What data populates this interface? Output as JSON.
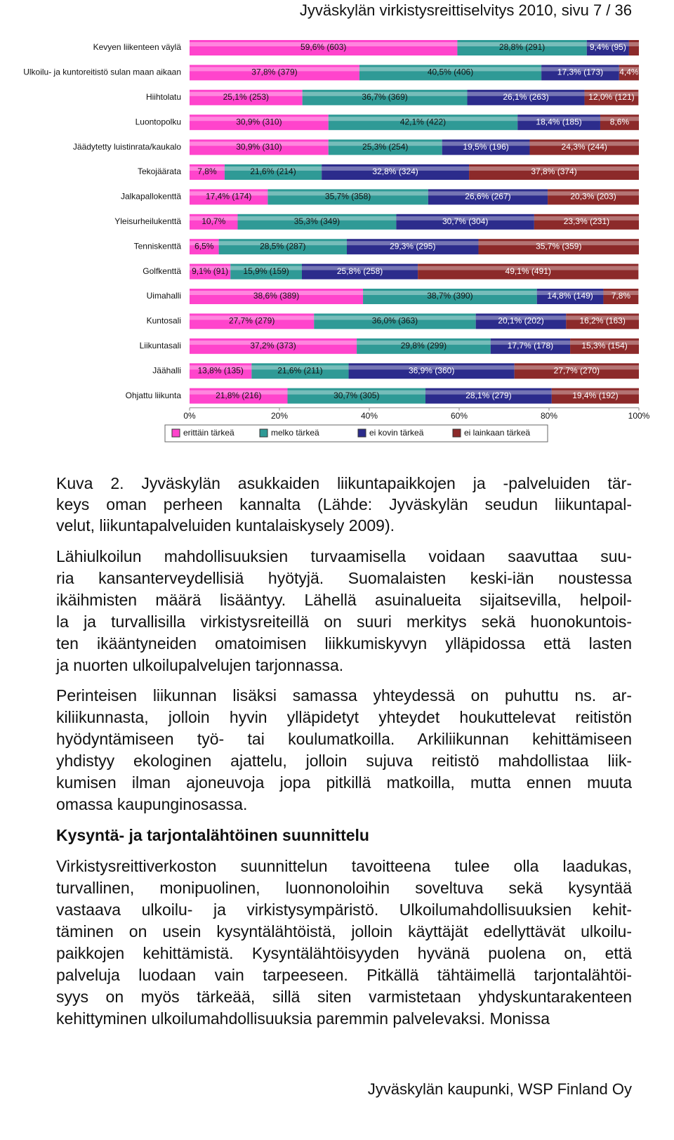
{
  "header": "Jyväskylän virkistysreittiselvitys 2010, sivu 7 / 36",
  "chart_data": {
    "type": "stacked-barh",
    "categories": [
      "Kevyen liikenteen väylä",
      "Ulkoilu- ja kuntoreitistö sulan maan aikaan",
      "Hiihtolatu",
      "Luontopolku",
      "Jäädytetty luistinrata/kaukalo",
      "Tekojäärata",
      "Jalkapallokenttä",
      "Yleisurheilukenttä",
      "Tenniskenttä",
      "Golfkenttä",
      "Uimahalli",
      "Kuntosali",
      "Liikuntasali",
      "Jäähalli",
      "Ohjattu liikunta"
    ],
    "series": [
      {
        "name": "erittäin tärkeä",
        "color": "#ff44cc",
        "values": [
          59.6,
          37.8,
          25.1,
          30.9,
          30.9,
          7.8,
          17.4,
          10.7,
          6.5,
          9.1,
          38.6,
          27.7,
          37.2,
          13.8,
          21.8
        ],
        "value_labels": [
          "59,6% (603)",
          "37,8% (379)",
          "25,1% (253)",
          "30,9% (310)",
          "30,9% (310)",
          "7,8%",
          "17,4% (174)",
          "10,7%",
          "6,5%",
          "9,1% (91)",
          "38,6% (389)",
          "27,7% (279)",
          "37,2% (373)",
          "13,8% (135)",
          "21,8% (216)"
        ]
      },
      {
        "name": "melko tärkeä",
        "color": "#2f9a96",
        "values": [
          28.8,
          40.5,
          36.7,
          42.1,
          25.3,
          21.6,
          35.7,
          35.3,
          28.5,
          15.9,
          38.7,
          36.0,
          29.8,
          21.6,
          30.7
        ],
        "value_labels": [
          "28,8% (291)",
          "40,5% (406)",
          "36,7% (369)",
          "42,1% (422)",
          "25,3% (254)",
          "21,6% (214)",
          "35,7% (358)",
          "35,3% (349)",
          "28,5% (287)",
          "15,9% (159)",
          "38,7% (390)",
          "36,0% (363)",
          "29,8% (299)",
          "21,6% (211)",
          "30,7% (305)"
        ]
      },
      {
        "name": "ei kovin tärkeä",
        "color": "#2c2c8c",
        "values": [
          9.4,
          17.3,
          26.1,
          18.4,
          19.5,
          32.8,
          26.6,
          30.7,
          29.3,
          25.8,
          14.8,
          20.1,
          17.7,
          36.9,
          28.1
        ],
        "value_labels": [
          "9,4% (95)",
          "17,3% (173)",
          "26,1% (263)",
          "18,4% (185)",
          "19,5% (196)",
          "32,8% (324)",
          "26,6% (267)",
          "30,7% (304)",
          "29,3% (295)",
          "25,8% (258)",
          "14,8% (149)",
          "20,1% (202)",
          "17,7% (178)",
          "36,9% (360)",
          "28,1% (279)"
        ]
      },
      {
        "name": "ei lainkaan tärkeä",
        "color": "#8c2a2a",
        "values": [
          2.2,
          4.4,
          12.0,
          8.6,
          24.3,
          37.8,
          20.3,
          23.3,
          35.7,
          49.1,
          7.8,
          16.2,
          15.3,
          27.7,
          19.4
        ],
        "value_labels": [
          null,
          "4,4%",
          "12,0% (121)",
          "8,6%",
          "24,3% (244)",
          "37,8% (374)",
          "20,3% (203)",
          "23,3% (231)",
          "35,7% (359)",
          "49,1% (491)",
          "7,8%",
          "16,2% (163)",
          "15,3% (154)",
          "27,7% (270)",
          "19,4% (192)"
        ]
      }
    ],
    "xlim": [
      0,
      100
    ],
    "xticks": [
      {
        "value": 0,
        "label": "0%"
      },
      {
        "value": 20,
        "label": "20%"
      },
      {
        "value": 40,
        "label": "40%"
      },
      {
        "value": 60,
        "label": "60%"
      },
      {
        "value": 80,
        "label": "80%"
      },
      {
        "value": 100,
        "label": "100%"
      }
    ]
  },
  "caption": [
    "Kuva 2. Jyväskylän asukkaiden liikuntapaikkojen ja -palveluiden tär-",
    "keys oman perheen kannalta (Lähde: Jyväskylän seudun liikuntapal-",
    "velut, liikuntapalveluiden kuntalaiskysely 2009)."
  ],
  "paragraphs": [
    [
      "Lähiulkoilun mahdollisuuksien turvaamisella voidaan saavuttaa suu-",
      "ria kansanterveydellisiä hyötyjä. Suomalaisten keski-iän noustessa",
      "ikäihmisten määrä lisääntyy. Lähellä asuinalueita sijaitsevilla, helpoil-",
      "la ja turvallisilla virkistysreiteillä on suuri merkitys sekä huonokuntois-",
      "ten ikääntyneiden omatoimisen liikkumiskyvyn ylläpidossa että lasten",
      "ja nuorten ulkoilupalvelujen tarjonnassa."
    ],
    [
      "Perinteisen liikunnan lisäksi samassa yhteydessä on puhuttu ns. ar-",
      "kiliikunnasta, jolloin hyvin ylläpidetyt yhteydet houkuttelevat reitistön",
      "hyödyntämiseen työ- tai koulumatkoilla. Arkiliikunnan kehittämiseen",
      "yhdistyy ekologinen ajattelu, jolloin sujuva reitistö mahdollistaa liik-",
      "kumisen ilman ajoneuvoja jopa pitkillä matkoilla, mutta ennen muuta",
      "omassa kaupunginosassa."
    ],
    [
      "Virkistysreittiverkoston suunnittelun tavoitteena tulee olla laadukas,",
      "turvallinen, monipuolinen, luonnonoloihin soveltuva sekä kysyntää",
      "vastaava ulkoilu- ja virkistysympäristö. Ulkoilumahdollisuuksien kehit-",
      "täminen on usein kysyntälähtöistä, jolloin käyttäjät edellyttävät ulkoilu-",
      "paikkojen kehittämistä. Kysyntälähtöisyyden hyvänä puolena on, että",
      "palveluja luodaan vain tarpeeseen. Pitkällä tähtäimellä tarjontalähtöi-",
      "syys on myös tärkeää, sillä siten varmistetaan yhdyskuntarakenteen",
      "kehittyminen ulkoilumahdollisuuksia paremmin palvelevaksi. Monissa"
    ]
  ],
  "heading": "Kysyntä- ja tarjontalähtöinen suunnittelu",
  "footer": "Jyväskylän kaupunki, WSP Finland Oy"
}
